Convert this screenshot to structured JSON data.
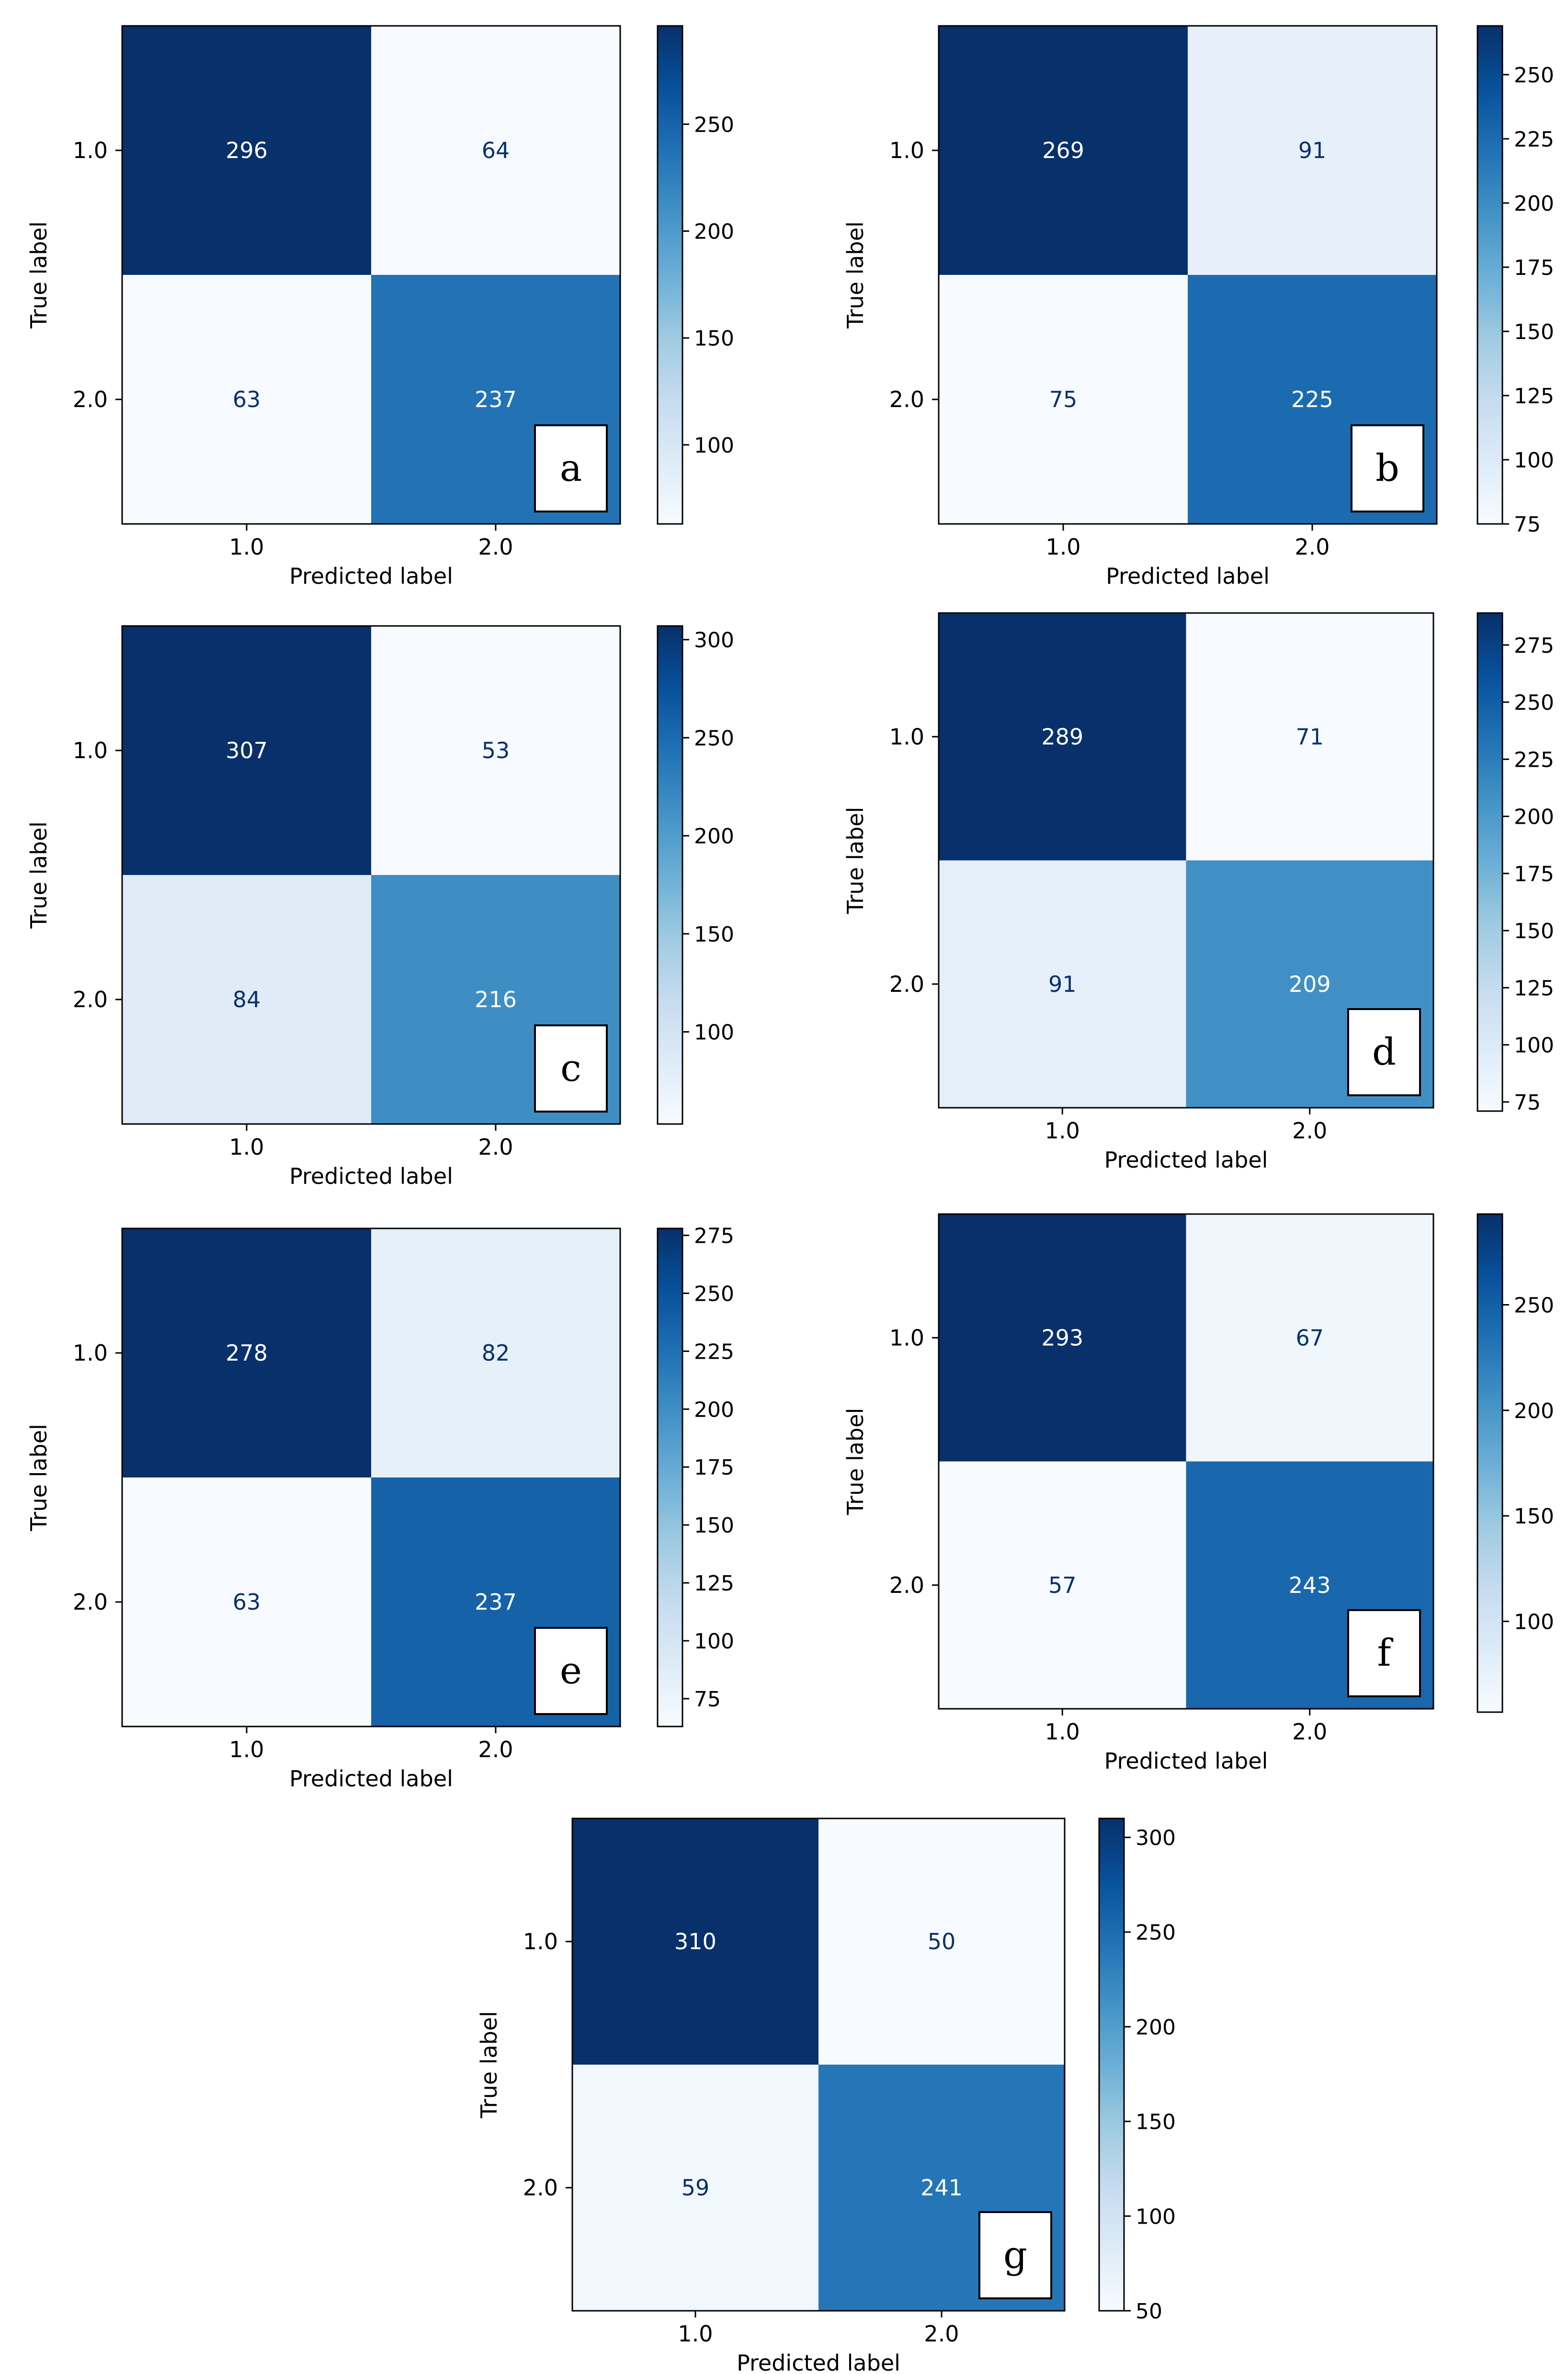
{
  "chart_data": [
    {
      "type": "heatmap",
      "panel_label": "a",
      "xlabel": "Predicted label",
      "ylabel": "True label",
      "x_tick_labels": [
        "1.0",
        "2.0"
      ],
      "y_tick_labels": [
        "1.0",
        "2.0"
      ],
      "matrix": [
        [
          296,
          64
        ],
        [
          63,
          237
        ]
      ],
      "colorbar": {
        "range": [
          63,
          296
        ],
        "ticks": [
          "100",
          "150",
          "200",
          "250"
        ]
      }
    },
    {
      "type": "heatmap",
      "panel_label": "b",
      "xlabel": "Predicted label",
      "ylabel": "True label",
      "x_tick_labels": [
        "1.0",
        "2.0"
      ],
      "y_tick_labels": [
        "1.0",
        "2.0"
      ],
      "matrix": [
        [
          269,
          91
        ],
        [
          75,
          225
        ]
      ],
      "colorbar": {
        "range": [
          75,
          269
        ],
        "ticks": [
          "75",
          "100",
          "125",
          "150",
          "175",
          "200",
          "225",
          "250"
        ]
      }
    },
    {
      "type": "heatmap",
      "panel_label": "c",
      "xlabel": "Predicted label",
      "ylabel": "True label",
      "x_tick_labels": [
        "1.0",
        "2.0"
      ],
      "y_tick_labels": [
        "1.0",
        "2.0"
      ],
      "matrix": [
        [
          307,
          53
        ],
        [
          84,
          216
        ]
      ],
      "colorbar": {
        "range": [
          53,
          307
        ],
        "ticks": [
          "100",
          "150",
          "200",
          "250",
          "300"
        ]
      }
    },
    {
      "type": "heatmap",
      "panel_label": "d",
      "xlabel": "Predicted label",
      "ylabel": "True label",
      "x_tick_labels": [
        "1.0",
        "2.0"
      ],
      "y_tick_labels": [
        "1.0",
        "2.0"
      ],
      "matrix": [
        [
          289,
          71
        ],
        [
          91,
          209
        ]
      ],
      "colorbar": {
        "range": [
          71,
          289
        ],
        "ticks": [
          "75",
          "100",
          "125",
          "150",
          "175",
          "200",
          "225",
          "250",
          "275"
        ]
      }
    },
    {
      "type": "heatmap",
      "panel_label": "e",
      "xlabel": "Predicted label",
      "ylabel": "True label",
      "x_tick_labels": [
        "1.0",
        "2.0"
      ],
      "y_tick_labels": [
        "1.0",
        "2.0"
      ],
      "matrix": [
        [
          278,
          82
        ],
        [
          63,
          237
        ]
      ],
      "colorbar": {
        "range": [
          63,
          278
        ],
        "ticks": [
          "75",
          "100",
          "125",
          "150",
          "175",
          "200",
          "225",
          "250",
          "275"
        ]
      }
    },
    {
      "type": "heatmap",
      "panel_label": "f",
      "xlabel": "Predicted label",
      "ylabel": "True label",
      "x_tick_labels": [
        "1.0",
        "2.0"
      ],
      "y_tick_labels": [
        "1.0",
        "2.0"
      ],
      "matrix": [
        [
          293,
          67
        ],
        [
          57,
          243
        ]
      ],
      "colorbar": {
        "range": [
          57,
          293
        ],
        "ticks": [
          "100",
          "150",
          "200",
          "250"
        ]
      }
    },
    {
      "type": "heatmap",
      "panel_label": "g",
      "xlabel": "Predicted label",
      "ylabel": "True label",
      "x_tick_labels": [
        "1.0",
        "2.0"
      ],
      "y_tick_labels": [
        "1.0",
        "2.0"
      ],
      "matrix": [
        [
          310,
          50
        ],
        [
          59,
          241
        ]
      ],
      "colorbar": {
        "range": [
          50,
          310
        ],
        "ticks": [
          "50",
          "100",
          "150",
          "200",
          "250",
          "300"
        ]
      }
    }
  ],
  "colors": {
    "colormap_stops": [
      "#f7fbff",
      "#deebf7",
      "#c6dbef",
      "#9ecae1",
      "#6baed6",
      "#4292c6",
      "#2171b5",
      "#08519c",
      "#08306b"
    ],
    "text_on_dark": "#ffffff",
    "text_on_light": "#08306b",
    "axis": "#000000"
  }
}
